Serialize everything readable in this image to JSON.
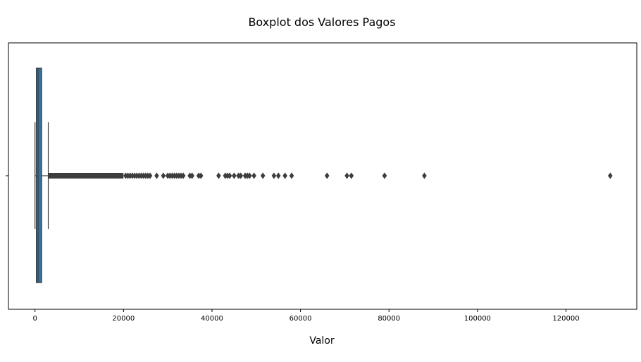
{
  "chart_data": {
    "type": "boxplot",
    "title": "Boxplot dos Valores Pagos",
    "xlabel": "Valor",
    "ylabel": "",
    "xlim": [
      -6000,
      136000
    ],
    "xticks": [
      0,
      20000,
      40000,
      60000,
      80000,
      100000,
      120000
    ],
    "xtick_labels": [
      "0",
      "20000",
      "40000",
      "60000",
      "80000",
      "100000",
      "120000"
    ],
    "grid": false,
    "box": {
      "min": 0,
      "q1": 300,
      "median": 700,
      "q3": 1500,
      "max": 3000,
      "fill_color": "#3274a1",
      "line_color": "#3d3d3d"
    },
    "outlier_dense_range": [
      3000,
      20000
    ],
    "outliers": [
      20500,
      21000,
      21500,
      22000,
      22500,
      23000,
      23500,
      24000,
      24500,
      25000,
      25500,
      26000,
      27500,
      29000,
      30000,
      30500,
      31000,
      31500,
      32000,
      32500,
      33000,
      33500,
      35000,
      35500,
      37000,
      37500,
      41500,
      43000,
      43500,
      44000,
      45000,
      46000,
      46500,
      47500,
      48000,
      48500,
      49500,
      51500,
      54000,
      55000,
      56500,
      58000,
      66000,
      70500,
      71500,
      79000,
      88000,
      130000
    ]
  }
}
